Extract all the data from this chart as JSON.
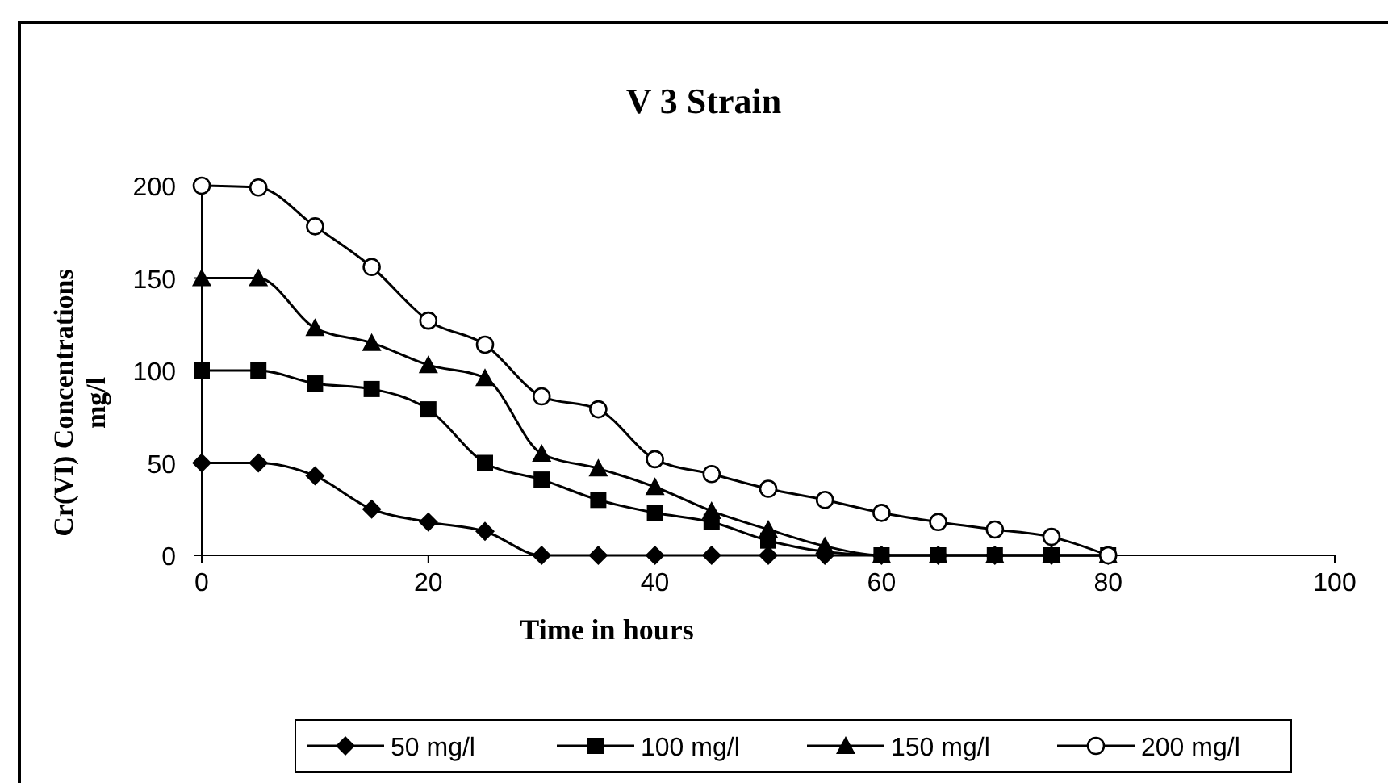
{
  "chart_data": {
    "type": "line",
    "title": "V 3 Strain",
    "xlabel": "Time in hours",
    "ylabel": "Cr(VI) Concentrations mg/l",
    "x": [
      0,
      5,
      10,
      15,
      20,
      25,
      30,
      35,
      40,
      45,
      50,
      55,
      60,
      65,
      70,
      75,
      80
    ],
    "series": [
      {
        "name": "50 mg/l",
        "color": "#000000",
        "marker": "diamond",
        "values": [
          50,
          50,
          43,
          25,
          18,
          13,
          0,
          0,
          0,
          0,
          0,
          0,
          0,
          0,
          0,
          0,
          0
        ]
      },
      {
        "name": "100 mg/l",
        "color": "#000000",
        "marker": "square",
        "values": [
          100,
          100,
          93,
          90,
          79,
          50,
          41,
          30,
          23,
          18,
          8,
          null,
          0,
          0,
          0,
          0,
          0
        ]
      },
      {
        "name": "150 mg/l",
        "color": "#000000",
        "marker": "triangle",
        "values": [
          150,
          150,
          123,
          115,
          103,
          96,
          55,
          47,
          37,
          24,
          14,
          5,
          0,
          0,
          0,
          0,
          0
        ]
      },
      {
        "name": "200 mg/l",
        "color": "#000000",
        "marker": "circle",
        "values": [
          200,
          199,
          178,
          156,
          127,
          114,
          86,
          79,
          52,
          44,
          36,
          30,
          23,
          18,
          14,
          10,
          0
        ]
      }
    ],
    "xlim": [
      0,
      100
    ],
    "xticks": [
      0,
      20,
      40,
      60,
      80,
      100
    ],
    "ylim": [
      0,
      200
    ],
    "yticks": [
      0,
      50,
      100,
      150,
      200
    ],
    "grid": false,
    "legend": "bottom"
  }
}
